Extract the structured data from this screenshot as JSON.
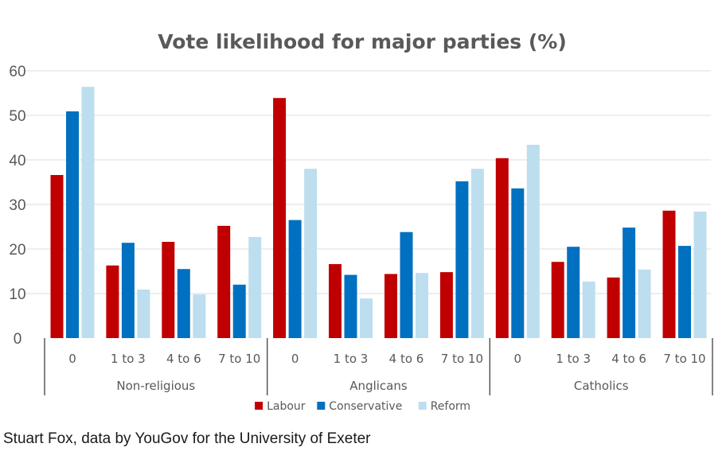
{
  "chart_data": {
    "type": "bar",
    "title": "Vote likelihood for major parties (%)",
    "xlabel": "",
    "ylabel": "",
    "ylim": [
      0,
      60
    ],
    "yticks": [
      0,
      10,
      20,
      30,
      40,
      50,
      60
    ],
    "grid": true,
    "legend_position": "bottom",
    "groups": [
      {
        "name": "Non-religious",
        "categories": [
          "0",
          "1 to 3",
          "4 to 6",
          "7 to 10"
        ]
      },
      {
        "name": "Anglicans",
        "categories": [
          "0",
          "1 to 3",
          "4 to 6",
          "7 to 10"
        ]
      },
      {
        "name": "Catholics",
        "categories": [
          "0",
          "1 to 3",
          "4 to 6",
          "7 to 10"
        ]
      }
    ],
    "categories": [
      "Non-religious: 0",
      "Non-religious: 1 to 3",
      "Non-religious: 4 to 6",
      "Non-religious: 7 to 10",
      "Anglicans: 0",
      "Anglicans: 1 to 3",
      "Anglicans: 4 to 6",
      "Anglicans: 7 to 10",
      "Catholics: 0",
      "Catholics: 1 to 3",
      "Catholics: 4 to 6",
      "Catholics: 7 to 10"
    ],
    "series": [
      {
        "name": "Labour",
        "color": "#C00000",
        "values": [
          36.6,
          16.3,
          21.6,
          25.2,
          53.9,
          16.6,
          14.4,
          14.8,
          40.4,
          17.1,
          13.6,
          28.6
        ]
      },
      {
        "name": "Conservative",
        "color": "#0070C0",
        "values": [
          50.9,
          21.4,
          15.5,
          12.0,
          26.5,
          14.2,
          23.8,
          35.2,
          33.6,
          20.5,
          24.8,
          20.7
        ]
      },
      {
        "name": "Reform",
        "color": "#BDDEEE",
        "values": [
          56.4,
          10.9,
          9.8,
          22.7,
          38.0,
          8.9,
          14.6,
          38.0,
          43.4,
          12.7,
          15.4,
          28.4
        ]
      }
    ]
  },
  "caption": "Stuart Fox, data by YouGov for the University of Exeter"
}
